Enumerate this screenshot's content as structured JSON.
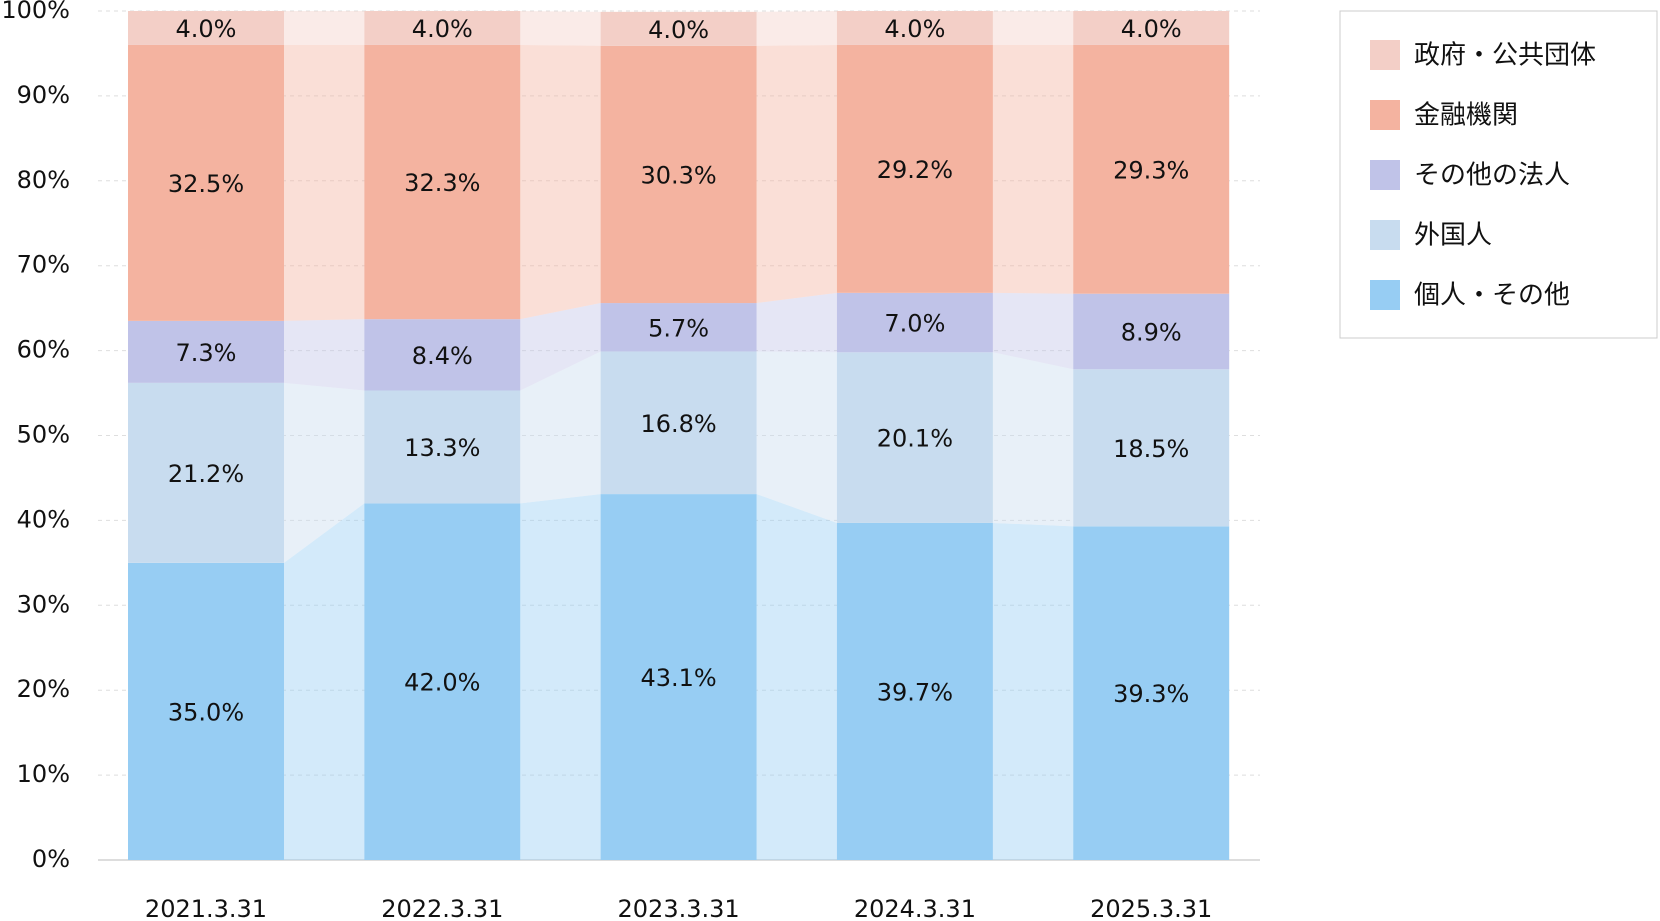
{
  "chart_data": {
    "type": "stacked_bar_percent",
    "categories": [
      "2021.3.31",
      "2022.3.3‌1",
      "2023.3.31",
      "2024.3.31",
      "2025.3.31"
    ],
    "series": [
      {
        "name": "個人・その他",
        "color": "#97cdf3",
        "values": [
          35.0,
          42.0,
          43.1,
          39.7,
          39.3
        ],
        "value_labels": [
          "35.0%",
          "42.0%",
          "43.1%",
          "39.7%",
          "39.3%"
        ]
      },
      {
        "name": "外国人",
        "color": "#c8dcef",
        "values": [
          21.2,
          13.3,
          16.8,
          20.1,
          18.5
        ],
        "value_labels": [
          "21.2%",
          "13.3%",
          "16.8%",
          "20.1%",
          "18.5%"
        ]
      },
      {
        "name": "その他の法人",
        "color": "#c0c3e8",
        "values": [
          7.3,
          8.4,
          5.7,
          7.0,
          8.9
        ],
        "value_labels": [
          "7.3%",
          "8.4%",
          "5.7%",
          "7.0%",
          "8.9%"
        ]
      },
      {
        "name": "金融機関",
        "color": "#f4b3a0",
        "values": [
          32.5,
          32.3,
          30.3,
          29.2,
          29.3
        ],
        "value_labels": [
          "32.5%",
          "32.3%",
          "30.3%",
          "29.2%",
          "29.3%"
        ]
      },
      {
        "name": "政府・公共団体",
        "color": "#f3cfc7",
        "values": [
          4.0,
          4.0,
          4.0,
          4.0,
          4.0
        ],
        "value_labels": [
          "4.0%",
          "4.0%",
          "4.0%",
          "4.0%",
          "4.0%"
        ]
      }
    ],
    "ylim": [
      0,
      100
    ],
    "yticks": [
      {
        "value": 0,
        "label": "0%"
      },
      {
        "value": 10,
        "label": "10%"
      },
      {
        "value": 20,
        "label": "20%"
      },
      {
        "value": 30,
        "label": "30%"
      },
      {
        "value": 40,
        "label": "40%"
      },
      {
        "value": 50,
        "label": "50%"
      },
      {
        "value": 60,
        "label": "60%"
      },
      {
        "value": 70,
        "label": "70%"
      },
      {
        "value": 80,
        "label": "80%"
      },
      {
        "value": 90,
        "label": "90%"
      },
      {
        "value": 100,
        "label": "100%"
      }
    ],
    "grid": true,
    "legend": "top-right"
  }
}
